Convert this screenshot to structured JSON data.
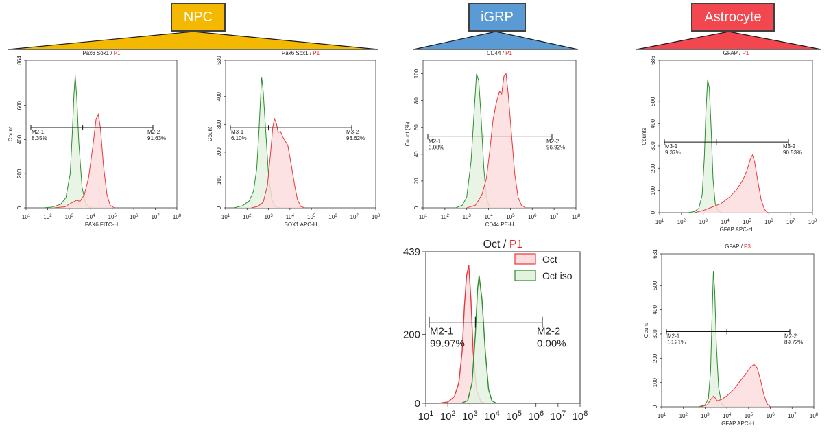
{
  "groups": [
    {
      "id": "npc",
      "label": "NPC",
      "color": "#f5b800"
    },
    {
      "id": "igrp",
      "label": "iGRP",
      "color": "#5b9bd5"
    },
    {
      "id": "astro",
      "label": "Astrocyte",
      "color": "#f2474f"
    }
  ],
  "chart_data": [
    {
      "type": "area",
      "group": "NPC",
      "title": "Pax6 Sox1",
      "gate": "P1",
      "xlabel": "PAX6 FITC-H",
      "ylabel": "Count",
      "ylim": [
        0,
        864
      ],
      "yticks": [
        {
          "v": 0,
          "t": "0"
        },
        {
          "v": 200,
          "t": "200"
        },
        {
          "v": 400,
          "t": "400"
        },
        {
          "v": 600,
          "t": "600"
        },
        {
          "v": 864,
          "t": "864"
        }
      ],
      "xlim": [
        1,
        8
      ],
      "xscale": "log",
      "marker_y": 470,
      "marker_split": 3.63,
      "regions": [
        {
          "name": "M2-1",
          "value": "8.35%"
        },
        {
          "name": "M2-2",
          "value": "91.63%"
        }
      ],
      "series": [
        {
          "color": "#2e8b2e",
          "fill": "#e4f2e0",
          "points": [
            [
              1.8,
              0
            ],
            [
              2.2,
              4
            ],
            [
              2.6,
              20
            ],
            [
              2.85,
              60
            ],
            [
              3.05,
              200
            ],
            [
              3.15,
              450
            ],
            [
              3.22,
              660
            ],
            [
              3.28,
              775
            ],
            [
              3.35,
              650
            ],
            [
              3.45,
              380
            ],
            [
              3.6,
              120
            ],
            [
              3.75,
              30
            ],
            [
              3.9,
              5
            ],
            [
              4.1,
              0
            ]
          ]
        },
        {
          "color": "#e8373a",
          "fill": "#fbdddd",
          "points": [
            [
              2.3,
              0
            ],
            [
              2.8,
              6
            ],
            [
              3.1,
              28
            ],
            [
              3.35,
              45
            ],
            [
              3.5,
              38
            ],
            [
              3.7,
              75
            ],
            [
              3.9,
              175
            ],
            [
              4.1,
              360
            ],
            [
              4.25,
              520
            ],
            [
              4.35,
              548
            ],
            [
              4.45,
              470
            ],
            [
              4.6,
              240
            ],
            [
              4.75,
              80
            ],
            [
              4.9,
              15
            ],
            [
              5.1,
              0
            ]
          ]
        }
      ]
    },
    {
      "type": "area",
      "group": "NPC",
      "title": "Pax6 Sox1",
      "gate": "P1",
      "xlabel": "SOX1 APC-H",
      "ylabel": "Count",
      "ylim": [
        0,
        530
      ],
      "yticks": [
        {
          "v": 0,
          "t": "0"
        },
        {
          "v": 100,
          "t": "100"
        },
        {
          "v": 200,
          "t": "200"
        },
        {
          "v": 300,
          "t": "300"
        },
        {
          "v": 400,
          "t": "400"
        },
        {
          "v": 530,
          "t": "530"
        }
      ],
      "xlim": [
        1,
        8
      ],
      "xscale": "log",
      "marker_y": 288,
      "marker_split": 3.0,
      "regions": [
        {
          "name": "M3-1",
          "value": "6.10%"
        },
        {
          "name": "M3-2",
          "value": "93.62%"
        }
      ],
      "series": [
        {
          "color": "#2e8b2e",
          "fill": "#e4f2e0",
          "points": [
            [
              1.4,
              0
            ],
            [
              1.8,
              8
            ],
            [
              2.1,
              25
            ],
            [
              2.3,
              60
            ],
            [
              2.45,
              140
            ],
            [
              2.55,
              270
            ],
            [
              2.62,
              380
            ],
            [
              2.68,
              470
            ],
            [
              2.75,
              420
            ],
            [
              2.85,
              300
            ],
            [
              3.0,
              120
            ],
            [
              3.15,
              30
            ],
            [
              3.3,
              5
            ],
            [
              3.5,
              0
            ]
          ]
        },
        {
          "color": "#e8373a",
          "fill": "#fbdddd",
          "points": [
            [
              2.2,
              0
            ],
            [
              2.5,
              5
            ],
            [
              2.75,
              20
            ],
            [
              2.95,
              80
            ],
            [
              3.1,
              200
            ],
            [
              3.2,
              290
            ],
            [
              3.28,
              320
            ],
            [
              3.38,
              300
            ],
            [
              3.45,
              270
            ],
            [
              3.55,
              275
            ],
            [
              3.7,
              250
            ],
            [
              3.9,
              225
            ],
            [
              4.05,
              160
            ],
            [
              4.2,
              90
            ],
            [
              4.35,
              30
            ],
            [
              4.5,
              5
            ],
            [
              4.7,
              0
            ]
          ]
        }
      ]
    },
    {
      "type": "area",
      "group": "iGRP",
      "title": "CD44",
      "gate": "P1",
      "xlabel": "CD44 PE-H",
      "ylabel": "Count (%)",
      "ylim": [
        0,
        110
      ],
      "yticks": [
        {
          "v": 0,
          "t": "0"
        },
        {
          "v": 20,
          "t": "20"
        },
        {
          "v": 40,
          "t": "40"
        },
        {
          "v": 60,
          "t": "60"
        },
        {
          "v": 80,
          "t": "80"
        },
        {
          "v": 100,
          "t": "100"
        }
      ],
      "xlim": [
        1,
        8
      ],
      "xscale": "log",
      "marker_y": 53,
      "marker_split": 3.75,
      "regions": [
        {
          "name": "M2-1",
          "value": "3.08%"
        },
        {
          "name": "M2-2",
          "value": "96.92%"
        }
      ],
      "series": [
        {
          "color": "#2e8b2e",
          "fill": "#e4f2e0",
          "points": [
            [
              2.5,
              0
            ],
            [
              2.8,
              2
            ],
            [
              3.0,
              8
            ],
            [
              3.2,
              35
            ],
            [
              3.35,
              75
            ],
            [
              3.45,
              100
            ],
            [
              3.55,
              95
            ],
            [
              3.65,
              70
            ],
            [
              3.78,
              30
            ],
            [
              3.9,
              8
            ],
            [
              4.05,
              0
            ]
          ]
        },
        {
          "color": "#e8373a",
          "fill": "#fbdddd",
          "points": [
            [
              3.0,
              0
            ],
            [
              3.4,
              2
            ],
            [
              3.7,
              10
            ],
            [
              3.9,
              22
            ],
            [
              4.05,
              42
            ],
            [
              4.2,
              65
            ],
            [
              4.35,
              78
            ],
            [
              4.5,
              87
            ],
            [
              4.6,
              85
            ],
            [
              4.7,
              98
            ],
            [
              4.8,
              100
            ],
            [
              4.9,
              85
            ],
            [
              5.05,
              55
            ],
            [
              5.2,
              25
            ],
            [
              5.35,
              8
            ],
            [
              5.5,
              2
            ],
            [
              5.7,
              0
            ]
          ]
        }
      ]
    },
    {
      "type": "area",
      "group": "iGRP",
      "title": "Oct",
      "gate": "P1",
      "xlabel": "",
      "ylabel": "",
      "ylim": [
        0,
        439
      ],
      "yticks": [
        {
          "v": 0,
          "t": "0"
        },
        {
          "v": 200,
          "t": "200"
        },
        {
          "v": 439,
          "t": "439"
        }
      ],
      "xlim": [
        1,
        8
      ],
      "xscale": "log",
      "marker_y": 235,
      "marker_split": 3.25,
      "regions": [
        {
          "name": "M2-1",
          "value": "99.97%"
        },
        {
          "name": "M2-2",
          "value": "0.00%"
        }
      ],
      "legend": [
        {
          "name": "Oct",
          "color": "#e8373a",
          "fill": "#fbdddd"
        },
        {
          "name": "Oct iso",
          "color": "#2e8b2e",
          "fill": "#e4f2e0"
        }
      ],
      "series": [
        {
          "color": "#e8373a",
          "fill": "#fbdddd",
          "points": [
            [
              1.6,
              0
            ],
            [
              2.0,
              4
            ],
            [
              2.3,
              20
            ],
            [
              2.5,
              60
            ],
            [
              2.65,
              150
            ],
            [
              2.75,
              280
            ],
            [
              2.85,
              370
            ],
            [
              2.95,
              400
            ],
            [
              3.05,
              300
            ],
            [
              3.15,
              150
            ],
            [
              3.3,
              40
            ],
            [
              3.5,
              5
            ],
            [
              3.7,
              0
            ]
          ]
        },
        {
          "color": "#2e8b2e",
          "fill": "#e4f2e0",
          "points": [
            [
              2.6,
              0
            ],
            [
              2.9,
              8
            ],
            [
              3.1,
              60
            ],
            [
              3.25,
              200
            ],
            [
              3.35,
              330
            ],
            [
              3.42,
              370
            ],
            [
              3.55,
              300
            ],
            [
              3.7,
              150
            ],
            [
              3.85,
              40
            ],
            [
              4.0,
              8
            ],
            [
              4.2,
              0
            ]
          ]
        }
      ]
    },
    {
      "type": "area",
      "group": "Astrocyte",
      "title": "GFAP",
      "gate": "P1",
      "xlabel": "GFAP APC-H",
      "ylabel": "Counts",
      "ylim": [
        0,
        686
      ],
      "yticks": [
        {
          "v": 0,
          "t": "0"
        },
        {
          "v": 100,
          "t": "100"
        },
        {
          "v": 200,
          "t": "200"
        },
        {
          "v": 300,
          "t": "300"
        },
        {
          "v": 400,
          "t": "400"
        },
        {
          "v": 500,
          "t": "500"
        },
        {
          "v": 686,
          "t": "686"
        }
      ],
      "xlim": [
        1,
        8
      ],
      "xscale": "log",
      "marker_y": 318,
      "marker_split": 3.6,
      "regions": [
        {
          "name": "M3-1",
          "value": "9.37%"
        },
        {
          "name": "M3-2",
          "value": "90.53%"
        }
      ],
      "series": [
        {
          "color": "#2e8b2e",
          "fill": "#e4f2e0",
          "points": [
            [
              2.3,
              0
            ],
            [
              2.6,
              5
            ],
            [
              2.8,
              20
            ],
            [
              2.95,
              80
            ],
            [
              3.05,
              250
            ],
            [
              3.12,
              450
            ],
            [
              3.2,
              600
            ],
            [
              3.28,
              560
            ],
            [
              3.36,
              380
            ],
            [
              3.45,
              150
            ],
            [
              3.55,
              40
            ],
            [
              3.7,
              5
            ],
            [
              3.9,
              0
            ]
          ]
        },
        {
          "color": "#e8373a",
          "fill": "#fbdddd",
          "points": [
            [
              2.6,
              0
            ],
            [
              3.0,
              10
            ],
            [
              3.4,
              25
            ],
            [
              3.8,
              40
            ],
            [
              4.2,
              70
            ],
            [
              4.5,
              100
            ],
            [
              4.8,
              145
            ],
            [
              5.0,
              190
            ],
            [
              5.15,
              240
            ],
            [
              5.25,
              260
            ],
            [
              5.35,
              230
            ],
            [
              5.5,
              140
            ],
            [
              5.65,
              60
            ],
            [
              5.8,
              15
            ],
            [
              5.95,
              0
            ]
          ]
        }
      ]
    },
    {
      "type": "area",
      "group": "Astrocyte",
      "title": "GFAP",
      "gate": "P3",
      "xlabel": "GFAP APC-H",
      "ylabel": "Count",
      "ylim": [
        0,
        631
      ],
      "yticks": [
        {
          "v": 0,
          "t": "0"
        },
        {
          "v": 100,
          "t": "100"
        },
        {
          "v": 200,
          "t": "200"
        },
        {
          "v": 300,
          "t": "300"
        },
        {
          "v": 400,
          "t": "400"
        },
        {
          "v": 500,
          "t": "500"
        },
        {
          "v": 631,
          "t": "631"
        }
      ],
      "xlim": [
        1,
        8
      ],
      "xscale": "log",
      "marker_y": 310,
      "marker_split": 4.0,
      "regions": [
        {
          "name": "M2-1",
          "value": "10.21%"
        },
        {
          "name": "M2-2",
          "value": "89.72%"
        }
      ],
      "series": [
        {
          "color": "#2e8b2e",
          "fill": "#e4f2e0",
          "points": [
            [
              2.7,
              0
            ],
            [
              3.0,
              8
            ],
            [
              3.15,
              35
            ],
            [
              3.25,
              150
            ],
            [
              3.32,
              380
            ],
            [
              3.38,
              560
            ],
            [
              3.44,
              480
            ],
            [
              3.52,
              250
            ],
            [
              3.62,
              80
            ],
            [
              3.75,
              15
            ],
            [
              3.9,
              0
            ]
          ]
        },
        {
          "color": "#e8373a",
          "fill": "#fbdddd",
          "points": [
            [
              2.8,
              0
            ],
            [
              3.1,
              8
            ],
            [
              3.25,
              30
            ],
            [
              3.4,
              45
            ],
            [
              3.55,
              25
            ],
            [
              3.75,
              30
            ],
            [
              4.0,
              45
            ],
            [
              4.3,
              70
            ],
            [
              4.6,
              105
            ],
            [
              4.9,
              140
            ],
            [
              5.1,
              165
            ],
            [
              5.25,
              175
            ],
            [
              5.4,
              160
            ],
            [
              5.55,
              110
            ],
            [
              5.7,
              50
            ],
            [
              5.85,
              12
            ],
            [
              6.0,
              0
            ]
          ]
        }
      ]
    }
  ]
}
